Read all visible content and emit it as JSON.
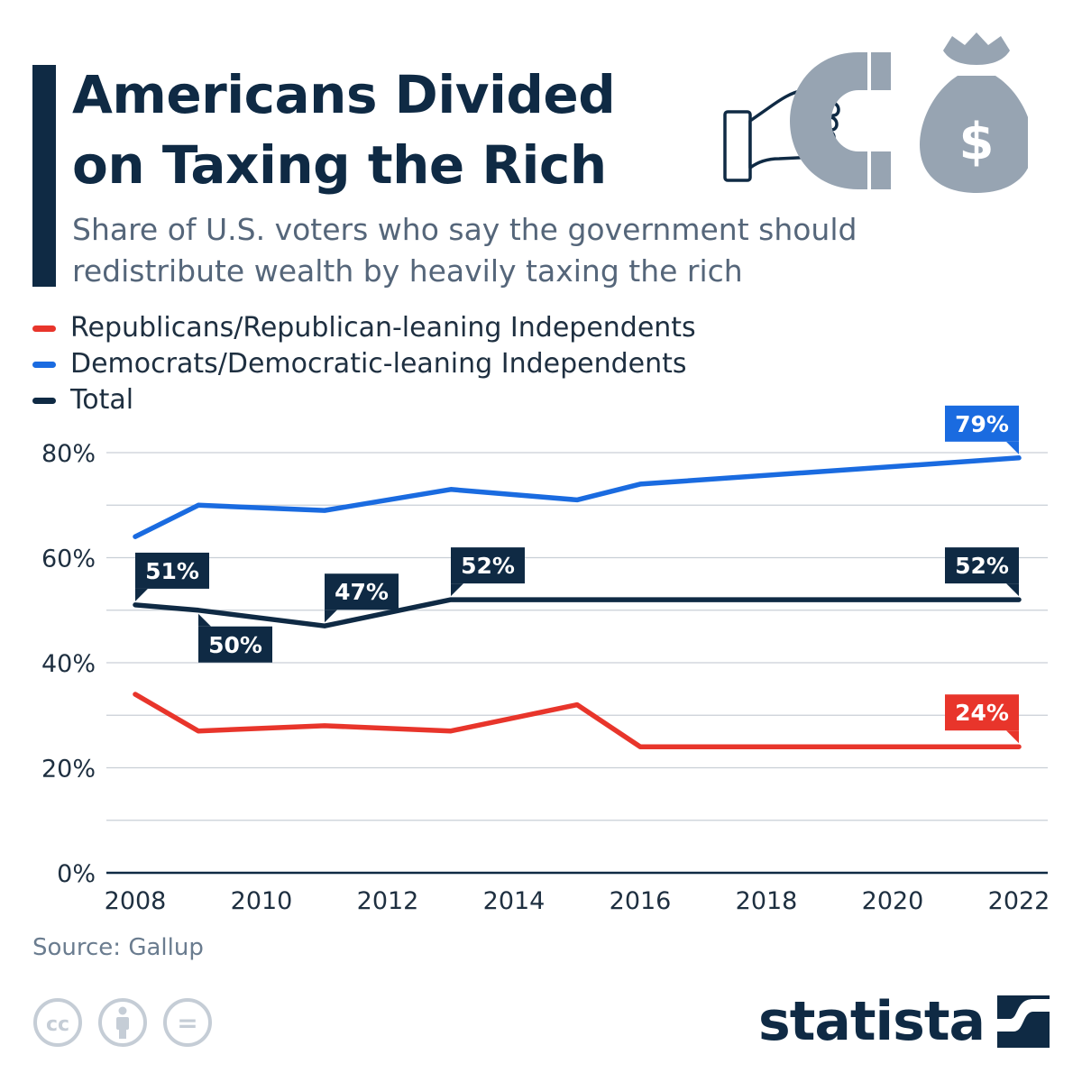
{
  "header": {
    "title_lines": [
      "Americans Divided",
      "on Taxing the Rich"
    ],
    "subtitle_lines": [
      "Share of U.S. voters who say the government should",
      "redistribute wealth by heavily taxing the rich"
    ],
    "hero_icons": [
      "hand-icon",
      "magnet-icon",
      "money-bag-icon"
    ],
    "money_symbol": "$"
  },
  "legend": [
    {
      "label": "Republicans/Republican-leaning Independents",
      "color": "#e8352b"
    },
    {
      "label": "Democrats/Democratic-leaning Independents",
      "color": "#1a6be0"
    },
    {
      "label": "Total",
      "color": "#0f2a44"
    }
  ],
  "chart_data": {
    "type": "line",
    "xlim": [
      2008,
      2022
    ],
    "ylim": [
      0,
      80
    ],
    "x_ticks": [
      2008,
      2010,
      2012,
      2014,
      2016,
      2018,
      2020,
      2022
    ],
    "x_tick_labels": [
      "2008",
      "2010",
      "2012",
      "2014",
      "2016",
      "2018",
      "2020",
      "2022"
    ],
    "y_ticks": [
      0,
      20,
      40,
      60,
      80
    ],
    "y_tick_labels": [
      "0%",
      "20%",
      "40%",
      "60%",
      "80%"
    ],
    "grid": true,
    "series": [
      {
        "name": "Democrats/Democratic-leaning Independents",
        "color": "#1a6be0",
        "points": [
          [
            2008,
            64
          ],
          [
            2009,
            70
          ],
          [
            2011,
            69
          ],
          [
            2013,
            73
          ],
          [
            2015,
            71
          ],
          [
            2016,
            74
          ],
          [
            2022,
            79
          ]
        ],
        "labels": [
          {
            "x": 2022,
            "y": 79,
            "text": "79%",
            "pos": "above"
          }
        ]
      },
      {
        "name": "Total",
        "color": "#0f2a44",
        "points": [
          [
            2008,
            51
          ],
          [
            2009,
            50
          ],
          [
            2011,
            47
          ],
          [
            2013,
            52
          ],
          [
            2015,
            52
          ],
          [
            2016,
            52
          ],
          [
            2022,
            52
          ]
        ],
        "labels": [
          {
            "x": 2008,
            "y": 51,
            "text": "51%",
            "pos": "above"
          },
          {
            "x": 2009,
            "y": 50,
            "text": "50%",
            "pos": "below"
          },
          {
            "x": 2011,
            "y": 47,
            "text": "47%",
            "pos": "above"
          },
          {
            "x": 2013,
            "y": 52,
            "text": "52%",
            "pos": "above"
          },
          {
            "x": 2022,
            "y": 52,
            "text": "52%",
            "pos": "above"
          }
        ]
      },
      {
        "name": "Republicans/Republican-leaning Independents",
        "color": "#e8352b",
        "points": [
          [
            2008,
            34
          ],
          [
            2009,
            27
          ],
          [
            2011,
            28
          ],
          [
            2013,
            27
          ],
          [
            2015,
            32
          ],
          [
            2016,
            24
          ],
          [
            2022,
            24
          ]
        ],
        "labels": [
          {
            "x": 2022,
            "y": 24,
            "text": "24%",
            "pos": "above"
          }
        ]
      }
    ]
  },
  "footer": {
    "source": "Source: Gallup",
    "license_icons": [
      "cc-icon",
      "attribution-icon",
      "no-derivatives-icon"
    ],
    "license_glyphs": [
      "cc",
      "="
    ],
    "brand": "statista"
  }
}
